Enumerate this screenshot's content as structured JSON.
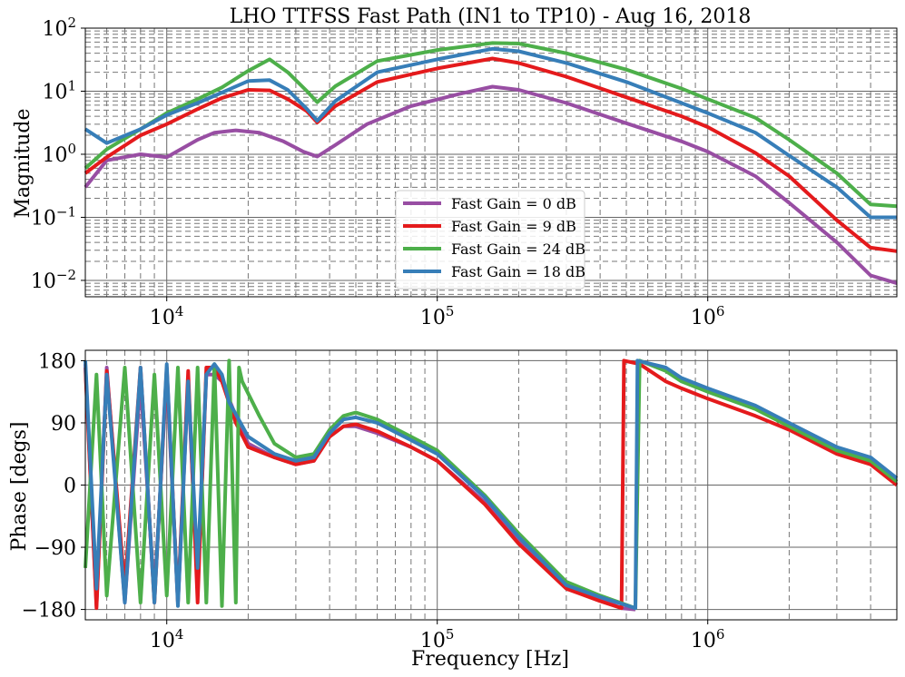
{
  "chart_data": [
    {
      "type": "line",
      "title": "LHO TTFSS Fast Path (IN1 to TP10) - Aug 16, 2018",
      "xlabel": "",
      "ylabel": "Magnitude",
      "xscale": "log",
      "yscale": "log",
      "xlim": [
        5000,
        5000000
      ],
      "ylim": [
        0.0055,
        100
      ],
      "grid": "major and minor, dashed",
      "legend": "lower-center",
      "xtick_labels": [
        "10^4",
        "10^5",
        "10^6"
      ],
      "ytick_labels": [
        "10^-2",
        "10^-1",
        "10^0",
        "10^1",
        "10^2"
      ],
      "series": [
        {
          "name": "Fast Gain = 0 dB",
          "color": "#984ea3",
          "points": [
            [
              5000,
              0.3
            ],
            [
              6000,
              0.8
            ],
            [
              8000,
              1.0
            ],
            [
              10000,
              0.9
            ],
            [
              13000,
              1.7
            ],
            [
              15000,
              2.2
            ],
            [
              18000,
              2.4
            ],
            [
              22000,
              2.2
            ],
            [
              27000,
              1.6
            ],
            [
              32000,
              1.1
            ],
            [
              36000,
              0.92
            ],
            [
              42000,
              1.4
            ],
            [
              55000,
              3.0
            ],
            [
              80000,
              5.8
            ],
            [
              120000,
              9.0
            ],
            [
              160000,
              11.8
            ],
            [
              200000,
              10.5
            ],
            [
              300000,
              6.5
            ],
            [
              500000,
              3.1
            ],
            [
              800000,
              1.6
            ],
            [
              1000000,
              1.1
            ],
            [
              1500000,
              0.45
            ],
            [
              2000000,
              0.17
            ],
            [
              3000000,
              0.04
            ],
            [
              4000000,
              0.012
            ],
            [
              5000000,
              0.009
            ]
          ]
        },
        {
          "name": "Fast Gain = 9 dB",
          "color": "#e41a1c",
          "points": [
            [
              5000,
              0.5
            ],
            [
              6000,
              0.9
            ],
            [
              8000,
              2.0
            ],
            [
              10000,
              3.0
            ],
            [
              13000,
              5.2
            ],
            [
              16000,
              7.8
            ],
            [
              20000,
              10.5
            ],
            [
              24000,
              10.3
            ],
            [
              28000,
              7.5
            ],
            [
              33000,
              4.8
            ],
            [
              36000,
              3.2
            ],
            [
              42000,
              5.8
            ],
            [
              60000,
              14.0
            ],
            [
              100000,
              23.0
            ],
            [
              160000,
              33.0
            ],
            [
              200000,
              28.0
            ],
            [
              300000,
              17.0
            ],
            [
              500000,
              8.0
            ],
            [
              800000,
              4.0
            ],
            [
              1000000,
              2.7
            ],
            [
              1500000,
              1.05
            ],
            [
              2000000,
              0.45
            ],
            [
              3000000,
              0.09
            ],
            [
              4000000,
              0.033
            ],
            [
              5000000,
              0.029
            ]
          ]
        },
        {
          "name": "Fast Gain = 24 dB",
          "color": "#4daf4a",
          "points": [
            [
              5000,
              0.6
            ],
            [
              6000,
              1.2
            ],
            [
              8000,
              2.5
            ],
            [
              10000,
              4.5
            ],
            [
              13000,
              7.5
            ],
            [
              16000,
              11.5
            ],
            [
              20000,
              21.0
            ],
            [
              24000,
              32.0
            ],
            [
              28000,
              20.0
            ],
            [
              33000,
              10.0
            ],
            [
              36000,
              6.7
            ],
            [
              42000,
              12.0
            ],
            [
              60000,
              30.0
            ],
            [
              100000,
              45.0
            ],
            [
              160000,
              58.0
            ],
            [
              200000,
              57.0
            ],
            [
              300000,
              40.0
            ],
            [
              500000,
              22.0
            ],
            [
              800000,
              11.0
            ],
            [
              1000000,
              7.5
            ],
            [
              1500000,
              3.8
            ],
            [
              2000000,
              1.7
            ],
            [
              3000000,
              0.5
            ],
            [
              4000000,
              0.16
            ],
            [
              5000000,
              0.15
            ]
          ]
        },
        {
          "name": "Fast Gain = 18 dB",
          "color": "#377eb8",
          "points": [
            [
              5000,
              2.5
            ],
            [
              6000,
              1.5
            ],
            [
              8000,
              2.5
            ],
            [
              10000,
              4.2
            ],
            [
              13000,
              6.5
            ],
            [
              16000,
              9.5
            ],
            [
              20000,
              14.5
            ],
            [
              24000,
              15.0
            ],
            [
              28000,
              10.5
            ],
            [
              33000,
              5.2
            ],
            [
              36000,
              3.4
            ],
            [
              42000,
              7.0
            ],
            [
              60000,
              20.0
            ],
            [
              100000,
              32.0
            ],
            [
              160000,
              47.0
            ],
            [
              200000,
              43.0
            ],
            [
              300000,
              28.0
            ],
            [
              500000,
              14.0
            ],
            [
              800000,
              6.5
            ],
            [
              1000000,
              4.5
            ],
            [
              1500000,
              2.2
            ],
            [
              2000000,
              0.95
            ],
            [
              3000000,
              0.3
            ],
            [
              4000000,
              0.1
            ],
            [
              5000000,
              0.1
            ]
          ]
        }
      ]
    },
    {
      "type": "line",
      "title": "",
      "xlabel": "Frequency [Hz]",
      "ylabel": "Phase [degs]",
      "xscale": "log",
      "yscale": "linear",
      "xlim": [
        5000,
        5000000
      ],
      "ylim": [
        -195,
        195
      ],
      "yticks": [
        -180,
        -90,
        0,
        90,
        180
      ],
      "ytick_labels": [
        "−180",
        "−90",
        "0",
        "90",
        "180"
      ],
      "xtick_labels": [
        "10^4",
        "10^5",
        "10^6"
      ],
      "grid": "major and minor, dashed",
      "series": [
        {
          "name": "Fast Gain = 0 dB",
          "color": "#984ea3",
          "points": [
            [
              5000,
              175
            ],
            [
              5500,
              -175
            ],
            [
              6000,
              170
            ],
            [
              7000,
              -170
            ],
            [
              8000,
              150
            ],
            [
              9000,
              -160
            ],
            [
              10000,
              160
            ],
            [
              11000,
              -170
            ],
            [
              12000,
              150
            ],
            [
              13000,
              -150
            ],
            [
              14000,
              160
            ],
            [
              15000,
              160
            ],
            [
              16000,
              150
            ],
            [
              18000,
              100
            ],
            [
              20000,
              60
            ],
            [
              25000,
              40
            ],
            [
              30000,
              30
            ],
            [
              35000,
              35
            ],
            [
              40000,
              70
            ],
            [
              45000,
              85
            ],
            [
              50000,
              85
            ],
            [
              60000,
              75
            ],
            [
              80000,
              55
            ],
            [
              100000,
              35
            ],
            [
              150000,
              -25
            ],
            [
              200000,
              -80
            ],
            [
              300000,
              -145
            ],
            [
              400000,
              -165
            ],
            [
              480000,
              -178
            ],
            [
              540000,
              -180
            ]
          ]
        },
        {
          "name": "Fast Gain = 9 dB",
          "color": "#e41a1c",
          "points": [
            [
              5000,
              170
            ],
            [
              5500,
              -178
            ],
            [
              6000,
              165
            ],
            [
              7000,
              -150
            ],
            [
              8000,
              170
            ],
            [
              9000,
              -170
            ],
            [
              10000,
              170
            ],
            [
              11000,
              -170
            ],
            [
              12000,
              165
            ],
            [
              13000,
              -170
            ],
            [
              14000,
              170
            ],
            [
              15000,
              170
            ],
            [
              16000,
              150
            ],
            [
              18000,
              90
            ],
            [
              20000,
              55
            ],
            [
              25000,
              40
            ],
            [
              30000,
              30
            ],
            [
              35000,
              35
            ],
            [
              40000,
              70
            ],
            [
              45000,
              85
            ],
            [
              50000,
              88
            ],
            [
              60000,
              78
            ],
            [
              80000,
              55
            ],
            [
              100000,
              35
            ],
            [
              150000,
              -28
            ],
            [
              200000,
              -85
            ],
            [
              300000,
              -150
            ],
            [
              400000,
              -168
            ],
            [
              480000,
              -178
            ],
            [
              490000,
              180
            ],
            [
              560000,
              175
            ],
            [
              700000,
              150
            ],
            [
              800000,
              140
            ],
            [
              1000000,
              125
            ],
            [
              1500000,
              100
            ],
            [
              2000000,
              80
            ],
            [
              3000000,
              45
            ],
            [
              4000000,
              30
            ],
            [
              5000000,
              0
            ]
          ]
        },
        {
          "name": "Fast Gain = 24 dB",
          "color": "#4daf4a",
          "points": [
            [
              5000,
              -120
            ],
            [
              5500,
              160
            ],
            [
              6000,
              -160
            ],
            [
              7000,
              170
            ],
            [
              8000,
              -170
            ],
            [
              9000,
              160
            ],
            [
              10000,
              -160
            ],
            [
              11000,
              170
            ],
            [
              12000,
              -170
            ],
            [
              13000,
              170
            ],
            [
              14000,
              -170
            ],
            [
              15000,
              175
            ],
            [
              16000,
              -175
            ],
            [
              17000,
              180
            ],
            [
              18000,
              -170
            ],
            [
              18500,
              170
            ],
            [
              19000,
              150
            ],
            [
              22000,
              100
            ],
            [
              25000,
              60
            ],
            [
              30000,
              40
            ],
            [
              35000,
              45
            ],
            [
              40000,
              80
            ],
            [
              45000,
              100
            ],
            [
              50000,
              105
            ],
            [
              60000,
              95
            ],
            [
              80000,
              70
            ],
            [
              100000,
              50
            ],
            [
              150000,
              -15
            ],
            [
              200000,
              -70
            ],
            [
              300000,
              -140
            ],
            [
              400000,
              -160
            ],
            [
              540000,
              -178
            ],
            [
              560000,
              180
            ],
            [
              700000,
              165
            ],
            [
              800000,
              150
            ],
            [
              1000000,
              135
            ],
            [
              1500000,
              110
            ],
            [
              2000000,
              85
            ],
            [
              3000000,
              50
            ],
            [
              4000000,
              35
            ],
            [
              5000000,
              5
            ]
          ]
        },
        {
          "name": "Fast Gain = 18 dB",
          "color": "#377eb8",
          "points": [
            [
              5000,
              180
            ],
            [
              5500,
              -150
            ],
            [
              6000,
              160
            ],
            [
              7000,
              -170
            ],
            [
              8000,
              170
            ],
            [
              9000,
              -170
            ],
            [
              10000,
              175
            ],
            [
              11000,
              -175
            ],
            [
              12000,
              150
            ],
            [
              13000,
              -120
            ],
            [
              14000,
              160
            ],
            [
              15000,
              175
            ],
            [
              16000,
              160
            ],
            [
              17000,
              120
            ],
            [
              20000,
              70
            ],
            [
              25000,
              45
            ],
            [
              30000,
              35
            ],
            [
              35000,
              40
            ],
            [
              40000,
              75
            ],
            [
              45000,
              95
            ],
            [
              50000,
              98
            ],
            [
              60000,
              90
            ],
            [
              80000,
              65
            ],
            [
              100000,
              45
            ],
            [
              150000,
              -18
            ],
            [
              200000,
              -75
            ],
            [
              300000,
              -145
            ],
            [
              400000,
              -162
            ],
            [
              540000,
              -178
            ],
            [
              550000,
              180
            ],
            [
              700000,
              170
            ],
            [
              800000,
              155
            ],
            [
              1000000,
              140
            ],
            [
              1500000,
              115
            ],
            [
              2000000,
              90
            ],
            [
              3000000,
              55
            ],
            [
              4000000,
              40
            ],
            [
              5000000,
              10
            ]
          ]
        }
      ]
    }
  ]
}
